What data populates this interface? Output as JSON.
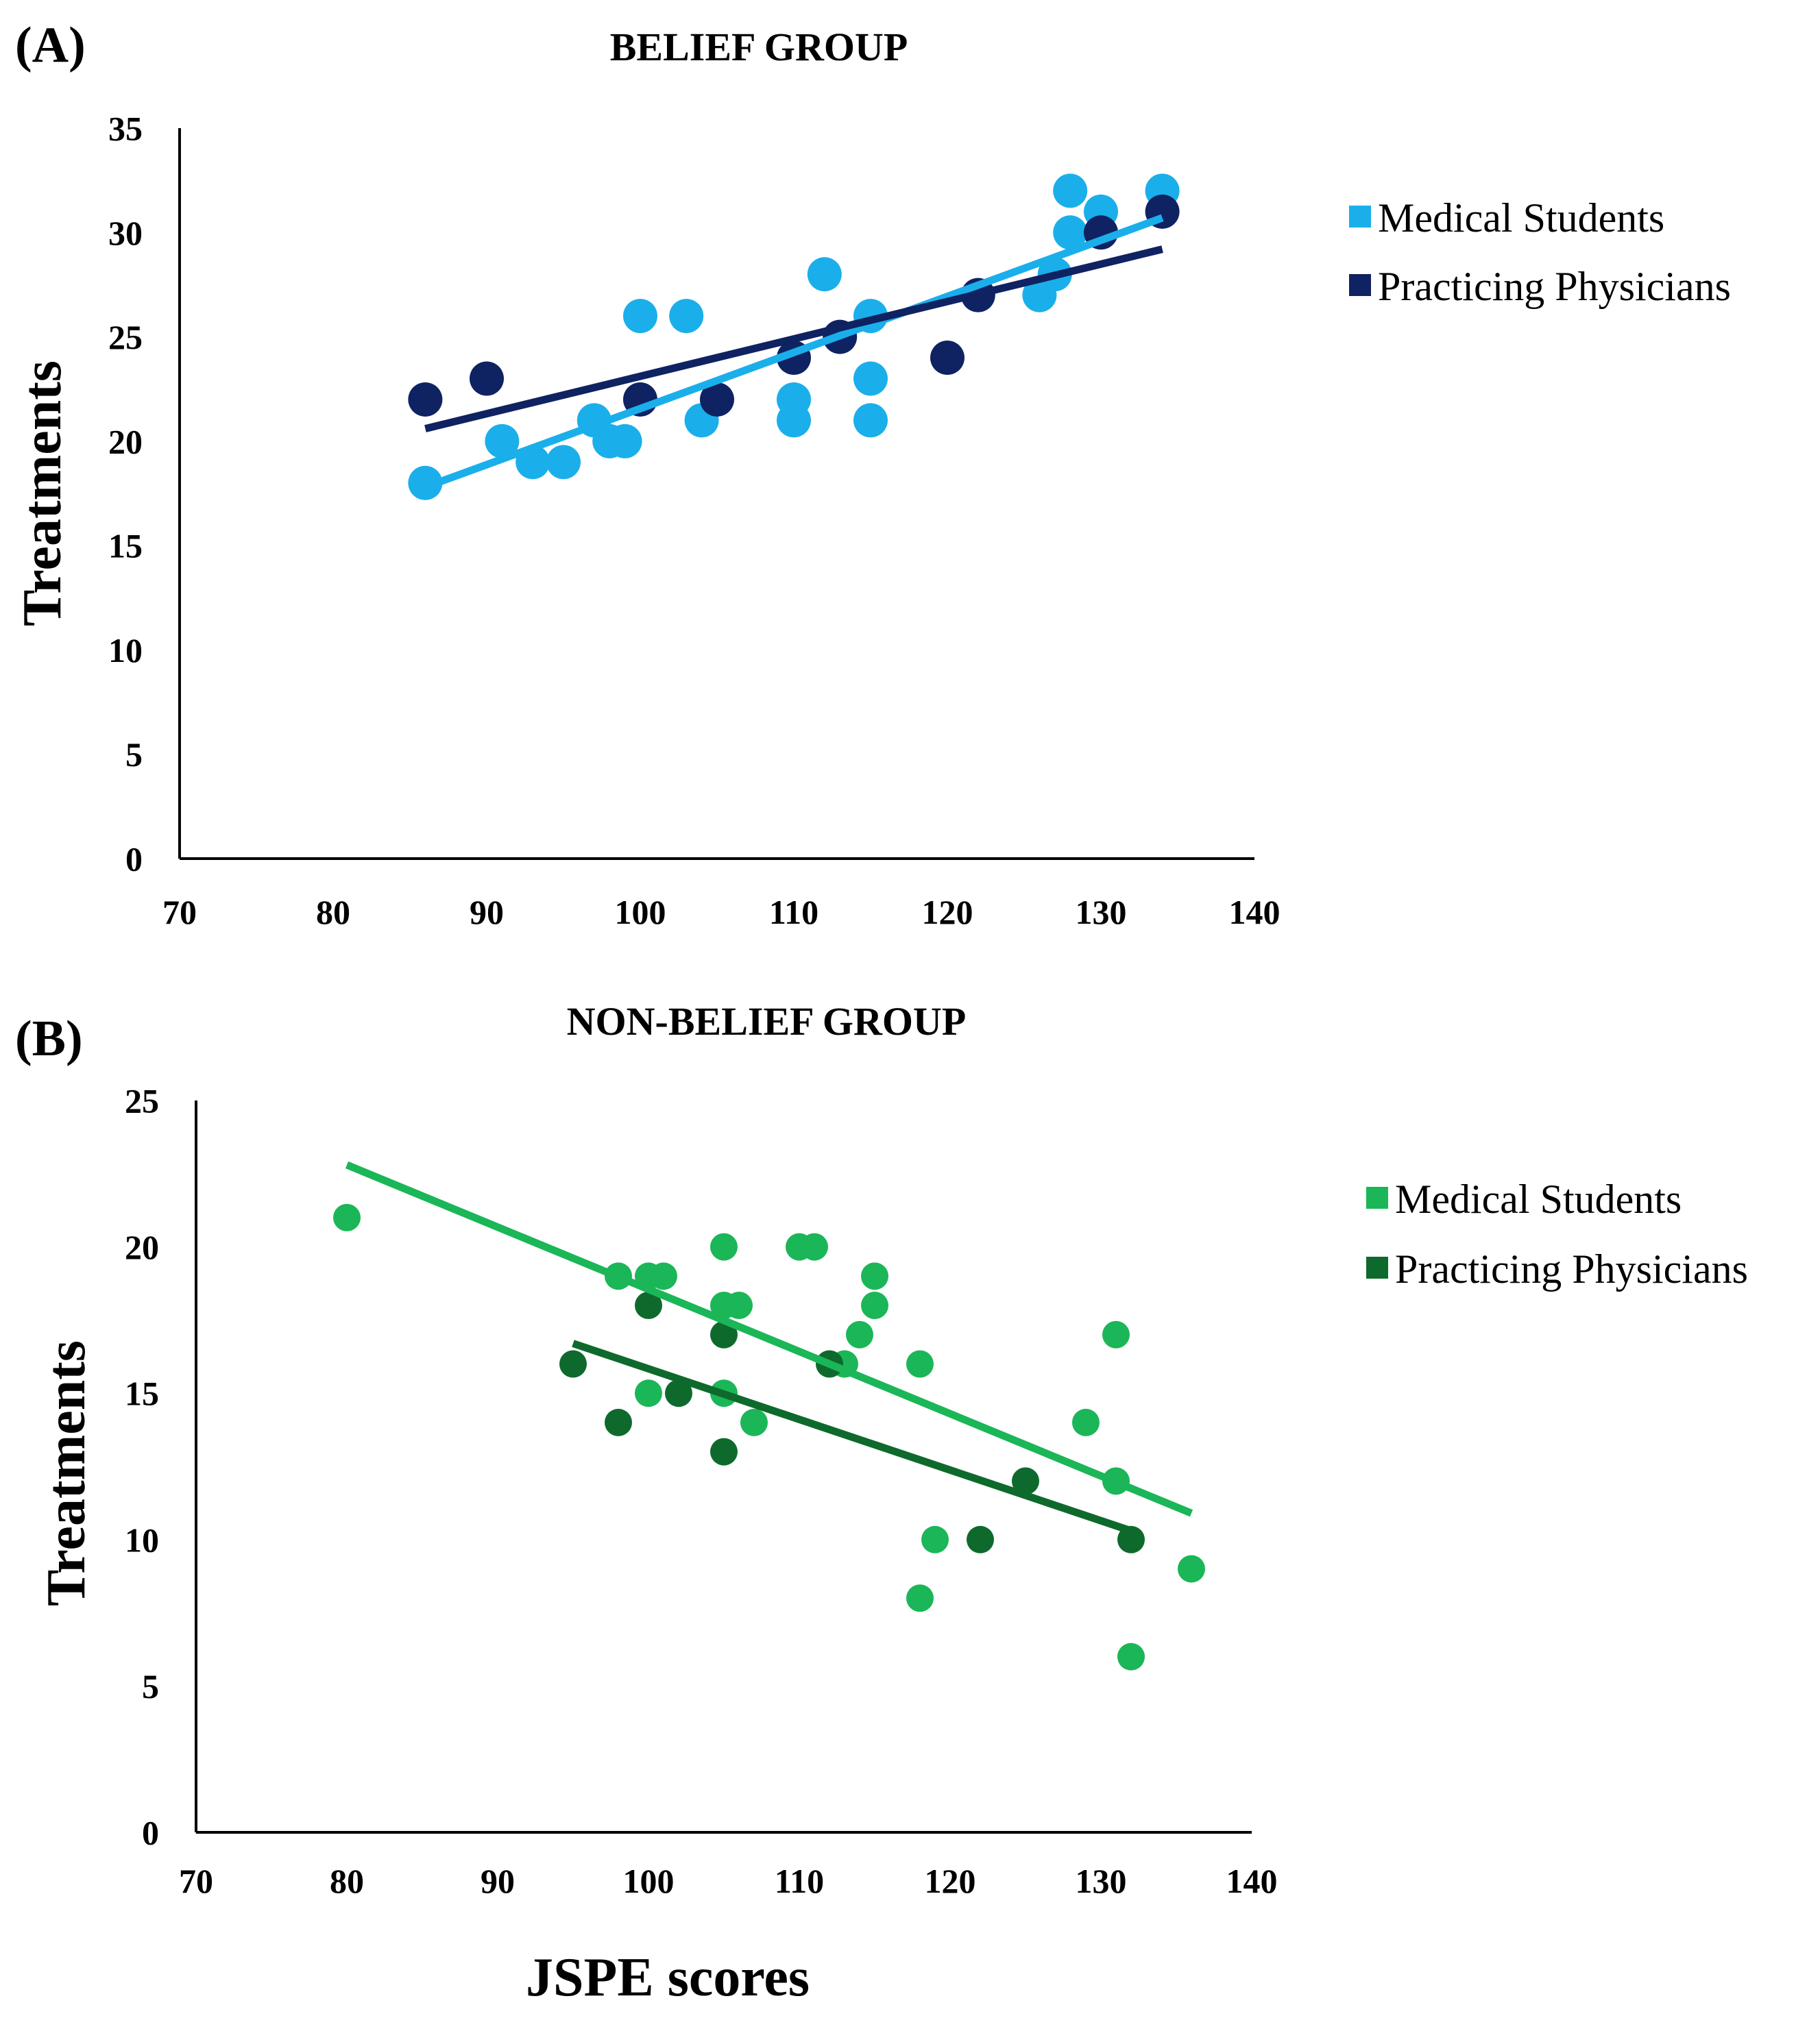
{
  "chart_data": [
    {
      "panel_label": "(A)",
      "type": "scatter",
      "title": "BELIEF GROUP",
      "xlabel": "",
      "ylabel": "Treatments",
      "xlim": [
        70,
        140
      ],
      "ylim": [
        0,
        35
      ],
      "xticks": [
        70,
        80,
        90,
        100,
        110,
        120,
        130,
        140
      ],
      "yticks": [
        0,
        5,
        10,
        15,
        20,
        25,
        30,
        35
      ],
      "legend_position": "right",
      "series": [
        {
          "name": "Medical Students",
          "color": "#1AAFEA",
          "points": [
            [
              86,
              18
            ],
            [
              91,
              20
            ],
            [
              93,
              19
            ],
            [
              95,
              19
            ],
            [
              97,
              21
            ],
            [
              98,
              20
            ],
            [
              99,
              20
            ],
            [
              100,
              26
            ],
            [
              103,
              26
            ],
            [
              104,
              21
            ],
            [
              110,
              22
            ],
            [
              110,
              21
            ],
            [
              112,
              28
            ],
            [
              115,
              26
            ],
            [
              115,
              23
            ],
            [
              115,
              21
            ],
            [
              126,
              27
            ],
            [
              127,
              28
            ],
            [
              128,
              30
            ],
            [
              128,
              32
            ],
            [
              130,
              31
            ],
            [
              134,
              32
            ]
          ],
          "trendline": [
            [
              86,
              17.8
            ],
            [
              134,
              30.7
            ]
          ]
        },
        {
          "name": "Practicing Physicians",
          "color": "#0F2262",
          "points": [
            [
              86,
              22
            ],
            [
              90,
              23
            ],
            [
              100,
              22
            ],
            [
              105,
              22
            ],
            [
              110,
              24
            ],
            [
              113,
              25
            ],
            [
              120,
              24
            ],
            [
              122,
              27
            ],
            [
              130,
              30
            ],
            [
              134,
              31
            ]
          ],
          "trendline": [
            [
              86,
              20.6
            ],
            [
              134,
              29.2
            ]
          ]
        }
      ]
    },
    {
      "panel_label": "(B)",
      "type": "scatter",
      "title": "NON-BELIEF GROUP",
      "xlabel": "JSPE scores",
      "ylabel": "Treatments",
      "xlim": [
        70,
        140
      ],
      "ylim": [
        0,
        25
      ],
      "xticks": [
        70,
        80,
        90,
        100,
        110,
        120,
        130,
        140
      ],
      "yticks": [
        0,
        5,
        10,
        15,
        20,
        25
      ],
      "legend_position": "right",
      "series": [
        {
          "name": "Medical Students",
          "color": "#1BB657",
          "points": [
            [
              80,
              21
            ],
            [
              98,
              19
            ],
            [
              100,
              19
            ],
            [
              101,
              19
            ],
            [
              100,
              15
            ],
            [
              105,
              20
            ],
            [
              105,
              18
            ],
            [
              106,
              18
            ],
            [
              105,
              15
            ],
            [
              107,
              14
            ],
            [
              110,
              20
            ],
            [
              111,
              20
            ],
            [
              113,
              16
            ],
            [
              114,
              17
            ],
            [
              115,
              19
            ],
            [
              115,
              18
            ],
            [
              118,
              16
            ],
            [
              119,
              10
            ],
            [
              118,
              8
            ],
            [
              129,
              14
            ],
            [
              131,
              17
            ],
            [
              131,
              12
            ],
            [
              132,
              6
            ],
            [
              136,
              9
            ]
          ],
          "trendline": [
            [
              80,
              22.8
            ],
            [
              136,
              10.9
            ]
          ]
        },
        {
          "name": "Practicing Physicians",
          "color": "#0E6A2C",
          "points": [
            [
              95,
              16
            ],
            [
              98,
              14
            ],
            [
              100,
              18
            ],
            [
              102,
              15
            ],
            [
              105,
              17
            ],
            [
              105,
              13
            ],
            [
              112,
              16
            ],
            [
              122,
              10
            ],
            [
              125,
              12
            ],
            [
              132,
              10
            ]
          ],
          "trendline": [
            [
              95,
              16.7
            ],
            [
              132,
              10.3
            ]
          ]
        }
      ]
    }
  ]
}
